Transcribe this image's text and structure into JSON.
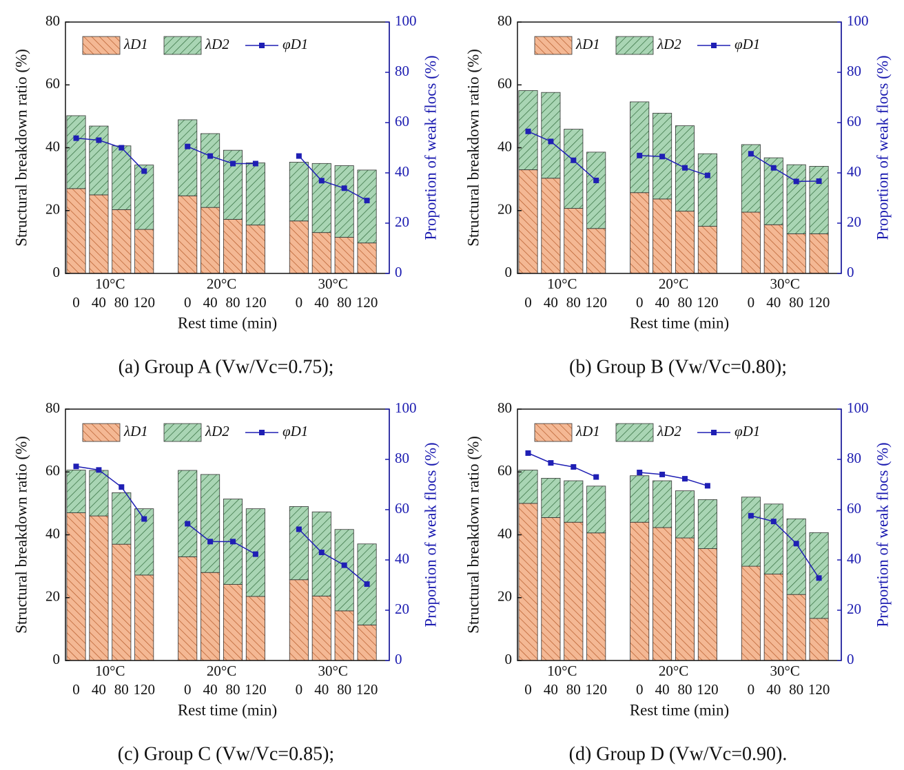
{
  "chart_data": [
    {
      "type": "bar",
      "stacked": true,
      "caption": "(a) Group A (Vw/Vc=0.75);",
      "xlabel": "Rest time (min)",
      "ylabel": "Structural breakdown ratio (%)",
      "y2label": "Proportion of weak flocs (%)",
      "groups": [
        "10°C",
        "20°C",
        "30°C"
      ],
      "categories": [
        "0",
        "40",
        "80",
        "120",
        "0",
        "40",
        "80",
        "120",
        "0",
        "40",
        "80",
        "120"
      ],
      "ylim": [
        0,
        80
      ],
      "yticks": [
        0,
        20,
        40,
        60,
        80
      ],
      "y2lim": [
        0,
        100
      ],
      "y2ticks": [
        0,
        20,
        40,
        60,
        80,
        100
      ],
      "series": [
        {
          "name": "λD1",
          "color": "#f0a070",
          "values": [
            27,
            25,
            20.3,
            14,
            24.7,
            21,
            17.2,
            15.4,
            16.7,
            13,
            11.5,
            9.7
          ]
        },
        {
          "name": "λD2",
          "color": "#8cc79a",
          "values": [
            23.2,
            21.9,
            20.3,
            20.5,
            24.2,
            23.5,
            22,
            19.8,
            18.7,
            22,
            22.8,
            23.2
          ]
        },
        {
          "name": "φD1",
          "color": "#1f1fb4",
          "type": "line",
          "axis": "y2",
          "values": [
            53.8,
            53,
            50,
            40.7,
            50.5,
            46.7,
            43.7,
            43.7,
            46.7,
            36.9,
            33.9,
            29
          ]
        }
      ]
    },
    {
      "type": "bar",
      "stacked": true,
      "caption": "(b) Group B (Vw/Vc=0.80);",
      "xlabel": "Rest time (min)",
      "ylabel": "Structural breakdown ratio (%)",
      "y2label": "Proportion of weak flocs (%)",
      "groups": [
        "10°C",
        "20°C",
        "30°C"
      ],
      "categories": [
        "0",
        "40",
        "80",
        "120",
        "0",
        "40",
        "80",
        "120",
        "0",
        "40",
        "80",
        "120"
      ],
      "ylim": [
        0,
        80
      ],
      "yticks": [
        0,
        20,
        40,
        60,
        80
      ],
      "y2lim": [
        0,
        100
      ],
      "y2ticks": [
        0,
        20,
        40,
        60,
        80,
        100
      ],
      "series": [
        {
          "name": "λD1",
          "color": "#f0a070",
          "values": [
            33,
            30.3,
            20.7,
            14.3,
            25.7,
            23.7,
            19.8,
            15,
            19.5,
            15.5,
            12.6,
            12.6
          ]
        },
        {
          "name": "λD2",
          "color": "#8cc79a",
          "values": [
            25.2,
            27.3,
            25.2,
            24.3,
            28.9,
            27.3,
            27.2,
            23.1,
            21.5,
            21.3,
            22,
            21.5
          ]
        },
        {
          "name": "φD1",
          "color": "#1f1fb4",
          "type": "line",
          "axis": "y2",
          "values": [
            56.5,
            52.5,
            45,
            37,
            46.9,
            46.5,
            42,
            39,
            47.6,
            42,
            36.6,
            36.7
          ]
        }
      ]
    },
    {
      "type": "bar",
      "stacked": true,
      "caption": "(c) Group C (Vw/Vc=0.85);",
      "xlabel": "Rest time (min)",
      "ylabel": "Structural breakdown ratio (%)",
      "y2label": "Proportion of weak flocs (%)",
      "groups": [
        "10°C",
        "20°C",
        "30°C"
      ],
      "categories": [
        "0",
        "40",
        "80",
        "120",
        "0",
        "40",
        "80",
        "120",
        "0",
        "40",
        "80",
        "120"
      ],
      "ylim": [
        0,
        80
      ],
      "yticks": [
        0,
        20,
        40,
        60,
        80
      ],
      "y2lim": [
        0,
        100
      ],
      "y2ticks": [
        0,
        20,
        40,
        60,
        80,
        100
      ],
      "series": [
        {
          "name": "λD1",
          "color": "#f0a070",
          "values": [
            47,
            46,
            37,
            27.2,
            33,
            28,
            24.2,
            20.4,
            25.7,
            20.5,
            15.8,
            11.3
          ]
        },
        {
          "name": "λD2",
          "color": "#8cc79a",
          "values": [
            13.6,
            14.5,
            16.4,
            21.1,
            27.5,
            31.2,
            27.2,
            27.9,
            23.3,
            26.8,
            25.9,
            25.8
          ]
        },
        {
          "name": "φD1",
          "color": "#1f1fb4",
          "type": "line",
          "axis": "y2",
          "values": [
            77.2,
            75.8,
            69,
            56.3,
            54.4,
            47.3,
            47.3,
            42.3,
            52.2,
            43,
            37.9,
            30.4
          ]
        }
      ]
    },
    {
      "type": "bar",
      "stacked": true,
      "caption": "(d) Group D (Vw/Vc=0.90).",
      "xlabel": "Rest time (min)",
      "ylabel": "Structural breakdown ratio (%)",
      "y2label": "Proportion of weak flocs (%)",
      "groups": [
        "10°C",
        "20°C",
        "30°C"
      ],
      "categories": [
        "0",
        "40",
        "80",
        "120",
        "0",
        "40",
        "80",
        "120",
        "0",
        "40",
        "80",
        "120"
      ],
      "ylim": [
        0,
        80
      ],
      "yticks": [
        0,
        20,
        40,
        60,
        80
      ],
      "y2lim": [
        0,
        100
      ],
      "y2ticks": [
        0,
        20,
        40,
        60,
        80,
        100
      ],
      "series": [
        {
          "name": "λD1",
          "color": "#f0a070",
          "values": [
            50,
            45.5,
            44,
            40.6,
            44,
            42.3,
            39,
            35.6,
            30,
            27.5,
            21,
            13.4
          ]
        },
        {
          "name": "λD2",
          "color": "#8cc79a",
          "values": [
            10.6,
            12.5,
            13.2,
            14.9,
            14.8,
            14.9,
            15,
            15.6,
            22,
            22.3,
            24.1,
            27.3
          ]
        },
        {
          "name": "φD1",
          "color": "#1f1fb4",
          "type": "line",
          "axis": "y2",
          "values": [
            82.5,
            78.6,
            77,
            73,
            74.8,
            74,
            72.3,
            69.5,
            57.6,
            55.3,
            46.5,
            32.8
          ]
        }
      ]
    }
  ]
}
